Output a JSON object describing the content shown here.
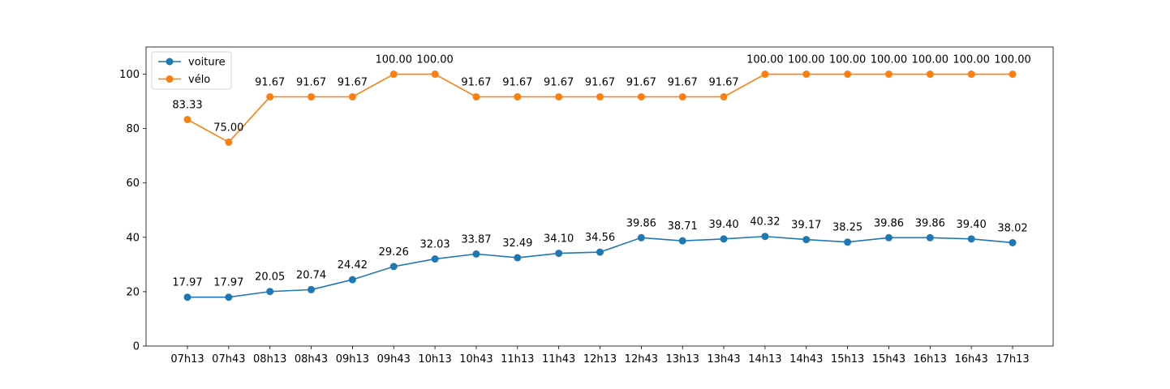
{
  "chart_data": {
    "type": "line",
    "categories": [
      "07h13",
      "07h43",
      "08h13",
      "08h43",
      "09h13",
      "09h43",
      "10h13",
      "10h43",
      "11h13",
      "11h43",
      "12h13",
      "12h43",
      "13h13",
      "13h43",
      "14h13",
      "14h43",
      "15h13",
      "15h43",
      "16h13",
      "16h43",
      "17h13"
    ],
    "series": [
      {
        "name": "voiture",
        "color": "#1f77b4",
        "values": [
          17.97,
          17.97,
          20.05,
          20.74,
          24.42,
          29.26,
          32.03,
          33.87,
          32.49,
          34.1,
          34.56,
          39.86,
          38.71,
          39.4,
          40.32,
          39.17,
          38.25,
          39.86,
          39.86,
          39.4,
          38.02
        ],
        "labels": [
          "17.97",
          "17.97",
          "20.05",
          "20.74",
          "24.42",
          "29.26",
          "32.03",
          "33.87",
          "32.49",
          "34.10",
          "34.56",
          "39.86",
          "38.71",
          "39.40",
          "40.32",
          "39.17",
          "38.25",
          "39.86",
          "39.86",
          "39.40",
          "38.02"
        ]
      },
      {
        "name": "vélo",
        "color": "#ff7f0e",
        "values": [
          83.33,
          75.0,
          91.67,
          91.67,
          91.67,
          100.0,
          100.0,
          91.67,
          91.67,
          91.67,
          91.67,
          91.67,
          91.67,
          91.67,
          100.0,
          100.0,
          100.0,
          100.0,
          100.0,
          100.0,
          100.0
        ],
        "labels": [
          "83.33",
          "75.00",
          "91.67",
          "91.67",
          "91.67",
          "100.00",
          "100.00",
          "91.67",
          "91.67",
          "91.67",
          "91.67",
          "91.67",
          "91.67",
          "91.67",
          "100.00",
          "100.00",
          "100.00",
          "100.00",
          "100.00",
          "100.00",
          "100.00"
        ]
      }
    ],
    "ylim": [
      0,
      110
    ],
    "yticks": [
      "0",
      "20",
      "40",
      "60",
      "80",
      "100"
    ],
    "grid": false,
    "legend_position": "top-left",
    "title": "",
    "xlabel": "",
    "ylabel": ""
  }
}
